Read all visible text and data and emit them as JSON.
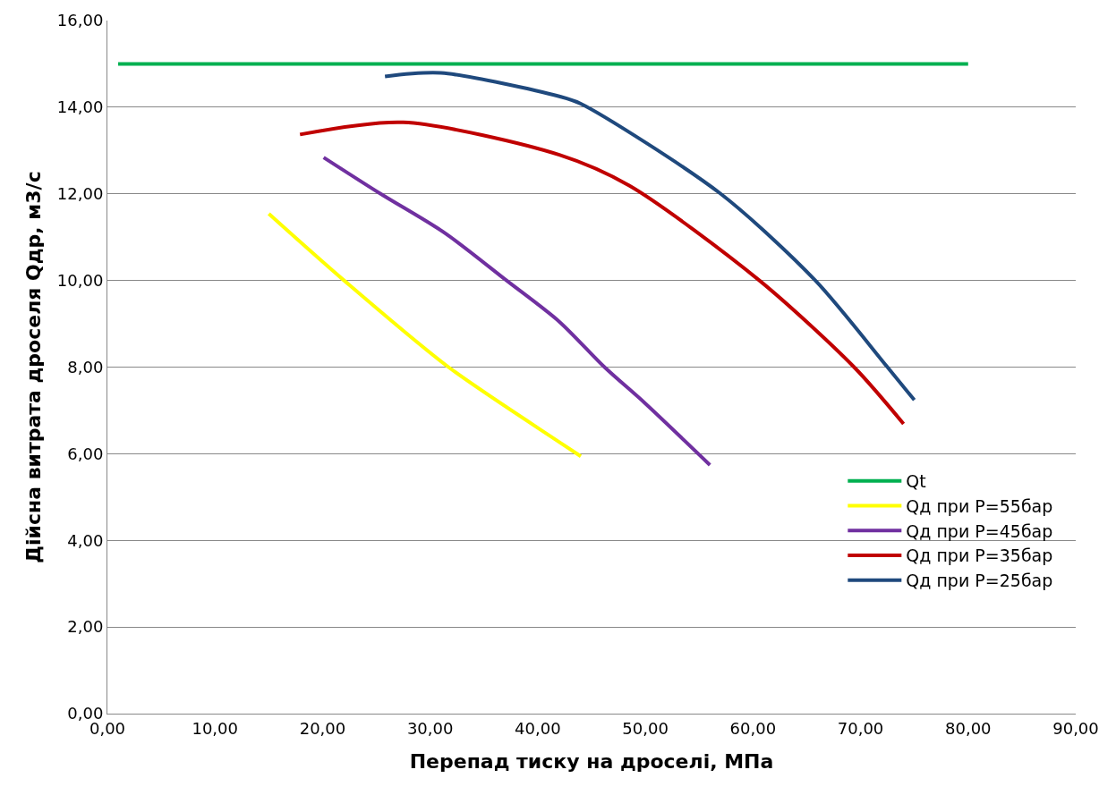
{
  "chart_data": {
    "type": "line",
    "xlabel": "Перепад тиску на дроселі, МПа",
    "ylabel": "Дійсна витрата дроселя Qдр, м3/с",
    "xlim": [
      0,
      90
    ],
    "ylim": [
      0,
      16
    ],
    "xticks": [
      {
        "value": 0,
        "label": "0,00"
      },
      {
        "value": 10,
        "label": "10,00"
      },
      {
        "value": 20,
        "label": "20,00"
      },
      {
        "value": 30,
        "label": "30,00"
      },
      {
        "value": 40,
        "label": "40,00"
      },
      {
        "value": 50,
        "label": "50,00"
      },
      {
        "value": 60,
        "label": "60,00"
      },
      {
        "value": 70,
        "label": "70,00"
      },
      {
        "value": 80,
        "label": "80,00"
      },
      {
        "value": 90,
        "label": "90,00"
      }
    ],
    "yticks": [
      {
        "value": 0,
        "label": "0,00"
      },
      {
        "value": 2,
        "label": "2,00"
      },
      {
        "value": 4,
        "label": "4,00"
      },
      {
        "value": 6,
        "label": "6,00"
      },
      {
        "value": 8,
        "label": "8,00"
      },
      {
        "value": 10,
        "label": "10,00"
      },
      {
        "value": 12,
        "label": "12,00"
      },
      {
        "value": 14,
        "label": "14,00"
      },
      {
        "value": 16,
        "label": "16,00"
      }
    ],
    "grid": "y",
    "legend": "right",
    "marker": "none",
    "line_style": "solid",
    "series": [
      {
        "name": "Qt",
        "color": "#00b050",
        "x": [
          1,
          80
        ],
        "values": [
          15,
          15
        ]
      },
      {
        "name": "Qд при P=55бар",
        "color": "#ffff00",
        "x": [
          15,
          22,
          31.7,
          42,
          44
        ],
        "values": [
          11.54,
          10.0,
          8.0,
          6.27,
          5.94
        ]
      },
      {
        "name": "Qд при P=45бар",
        "color": "#7030a0",
        "x": [
          20.1,
          25.4,
          31.4,
          37.1,
          42,
          46.2,
          50,
          56
        ],
        "values": [
          12.84,
          12.0,
          11.09,
          10.0,
          9.05,
          8.0,
          7.16,
          5.74
        ]
      },
      {
        "name": "Qд при P=35бар",
        "color": "#c00000",
        "x": [
          17.9,
          27.5,
          42,
          48.5,
          60.6,
          69.4,
          74
        ],
        "values": [
          13.37,
          13.65,
          12.9,
          12.19,
          10.0,
          8.0,
          6.69
        ]
      },
      {
        "name": "Qд при P=25бар",
        "color": "#1f497d",
        "x": [
          25.8,
          31,
          42,
          44,
          56.9,
          65.8,
          72.5,
          75
        ],
        "values": [
          14.71,
          14.79,
          14.25,
          14.08,
          12.02,
          10.0,
          8.0,
          7.24
        ]
      }
    ]
  }
}
